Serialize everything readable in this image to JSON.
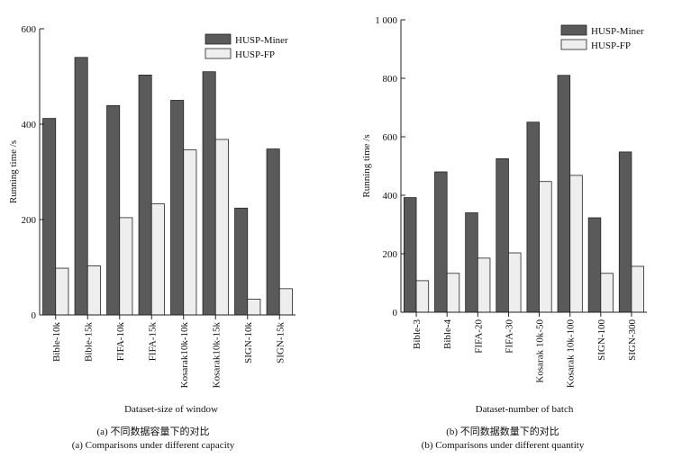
{
  "chart_data": [
    {
      "type": "bar",
      "xlabel": "Dataset-size of window",
      "ylabel": "Running time /s",
      "ylim": [
        0,
        600
      ],
      "yticks": [
        "0",
        "200",
        "400",
        "600"
      ],
      "legend_position": "top-right",
      "categories": [
        "Bible-10k",
        "Bible-15k",
        "FIFA-10k",
        "FIFA-15k",
        "Kosarak10k-10k",
        "Kosarak10k-15k",
        "SIGN-10k",
        "SIGN-15k"
      ],
      "series": [
        {
          "name": "HUSP-Miner",
          "color": "#5a5a5a",
          "values": [
            412,
            540,
            439,
            503,
            450,
            510,
            224,
            348
          ]
        },
        {
          "name": "HUSP-FP",
          "color": "#eeeeee",
          "values": [
            98,
            103,
            204,
            233,
            346,
            368,
            33,
            55
          ]
        }
      ]
    },
    {
      "type": "bar",
      "xlabel": "Dataset-number of batch",
      "ylabel": "Running time /s",
      "ylim": [
        0,
        1000
      ],
      "yticks": [
        "0",
        "200",
        "400",
        "600",
        "800",
        "1 000"
      ],
      "legend_position": "top-right",
      "categories": [
        "Bible-3",
        "Bible-4",
        "FIFA-20",
        "FIFA-30",
        "Kosarak 10k-50",
        "Kosarak 10k-100",
        "SIGN-100",
        "SIGN-300"
      ],
      "series": [
        {
          "name": "HUSP-Miner",
          "color": "#5a5a5a",
          "values": [
            392,
            480,
            340,
            525,
            650,
            810,
            323,
            548
          ]
        },
        {
          "name": "HUSP-FP",
          "color": "#eeeeee",
          "values": [
            108,
            133,
            185,
            203,
            447,
            468,
            133,
            157
          ]
        }
      ]
    }
  ],
  "captions": {
    "a_cn": "(a) 不同数据容量下的对比",
    "a_en": "(a) Comparisons under different capacity",
    "b_cn": "(b) 不同数据数量下的对比",
    "b_en": "(b) Comparisons under different quantity"
  }
}
